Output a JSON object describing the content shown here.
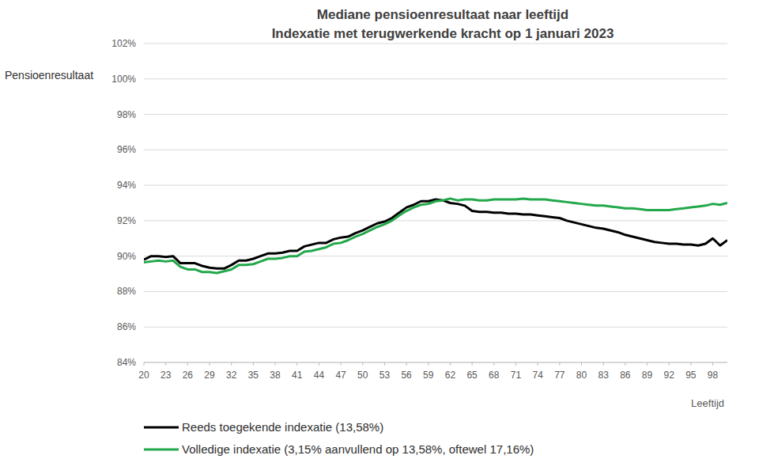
{
  "chart_data": {
    "type": "line",
    "title": "Mediane pensioenresultaat naar leeftijd",
    "subtitle": "Indexatie met terugwerkende kracht op 1 januari 2023",
    "y_label": "Pensioenresultaat",
    "x_label": "Leeftijd",
    "x": [
      20,
      21,
      22,
      23,
      24,
      25,
      26,
      27,
      28,
      29,
      30,
      31,
      32,
      33,
      34,
      35,
      36,
      37,
      38,
      39,
      40,
      41,
      42,
      43,
      44,
      45,
      46,
      47,
      48,
      49,
      50,
      51,
      52,
      53,
      54,
      55,
      56,
      57,
      58,
      59,
      60,
      61,
      62,
      63,
      64,
      65,
      66,
      67,
      68,
      69,
      70,
      71,
      72,
      73,
      74,
      75,
      76,
      77,
      78,
      79,
      80,
      81,
      82,
      83,
      84,
      85,
      86,
      87,
      88,
      89,
      90,
      91,
      92,
      93,
      94,
      95,
      96,
      97,
      98,
      99,
      100
    ],
    "series": [
      {
        "name": "Reeds toegekende indexatie (13,58%)",
        "color": "#000000",
        "values": [
          89.8,
          90.0,
          90.0,
          89.95,
          90.0,
          89.6,
          89.6,
          89.6,
          89.45,
          89.35,
          89.3,
          89.3,
          89.5,
          89.75,
          89.75,
          89.85,
          90.0,
          90.15,
          90.15,
          90.2,
          90.3,
          90.3,
          90.55,
          90.65,
          90.75,
          90.75,
          90.95,
          91.05,
          91.1,
          91.3,
          91.45,
          91.65,
          91.85,
          91.95,
          92.15,
          92.45,
          92.75,
          92.9,
          93.1,
          93.1,
          93.2,
          93.15,
          93.0,
          92.95,
          92.85,
          92.55,
          92.5,
          92.5,
          92.45,
          92.45,
          92.4,
          92.4,
          92.35,
          92.35,
          92.3,
          92.25,
          92.2,
          92.15,
          92.0,
          91.9,
          91.8,
          91.7,
          91.6,
          91.55,
          91.45,
          91.35,
          91.2,
          91.1,
          91.0,
          90.9,
          90.8,
          90.75,
          90.7,
          90.7,
          90.65,
          90.65,
          90.6,
          90.7,
          91.0,
          90.6,
          90.9
        ]
      },
      {
        "name": "Volledige indexatie (3,15% aanvullend op 13,58%, oftewel 17,16%)",
        "color": "#22a84a",
        "values": [
          89.65,
          89.7,
          89.75,
          89.7,
          89.75,
          89.4,
          89.25,
          89.25,
          89.1,
          89.1,
          89.05,
          89.15,
          89.25,
          89.5,
          89.5,
          89.55,
          89.7,
          89.85,
          89.85,
          89.9,
          90.0,
          90.0,
          90.25,
          90.3,
          90.4,
          90.5,
          90.7,
          90.75,
          90.9,
          91.1,
          91.25,
          91.45,
          91.65,
          91.8,
          92.0,
          92.3,
          92.55,
          92.75,
          92.9,
          92.95,
          93.1,
          93.15,
          93.25,
          93.15,
          93.2,
          93.2,
          93.15,
          93.15,
          93.2,
          93.2,
          93.2,
          93.2,
          93.25,
          93.2,
          93.2,
          93.2,
          93.15,
          93.1,
          93.05,
          93.0,
          92.95,
          92.9,
          92.85,
          92.85,
          92.8,
          92.75,
          92.7,
          92.7,
          92.65,
          92.6,
          92.6,
          92.6,
          92.6,
          92.65,
          92.7,
          92.75,
          92.8,
          92.85,
          92.95,
          92.9,
          93.0
        ]
      }
    ],
    "xlim": [
      20,
      100
    ],
    "xticks": [
      20,
      23,
      26,
      29,
      32,
      35,
      38,
      41,
      44,
      47,
      50,
      53,
      56,
      59,
      62,
      65,
      68,
      71,
      74,
      77,
      80,
      83,
      86,
      89,
      92,
      95,
      98
    ],
    "ylim": [
      84,
      102
    ],
    "yticks": [
      {
        "value": 84,
        "label": "84%"
      },
      {
        "value": 86,
        "label": "86%"
      },
      {
        "value": 88,
        "label": "88%"
      },
      {
        "value": 90,
        "label": "90%"
      },
      {
        "value": 92,
        "label": "92%"
      },
      {
        "value": 94,
        "label": "94%"
      },
      {
        "value": 96,
        "label": "96%"
      },
      {
        "value": 98,
        "label": "98%"
      },
      {
        "value": 100,
        "label": "100%"
      },
      {
        "value": 102,
        "label": "102%"
      }
    ],
    "grid": true,
    "legend": "bottom"
  }
}
